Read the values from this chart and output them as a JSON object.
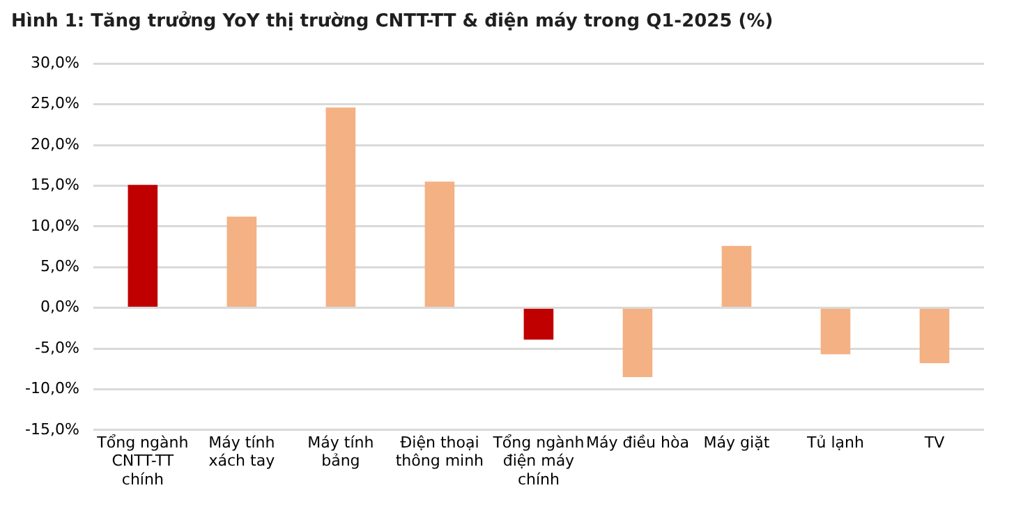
{
  "chart_data": {
    "type": "bar",
    "title": "Hình 1: Tăng trưởng YoY thị trường CNTT-TT & điện máy trong Q1-2025 (%)",
    "categories": [
      "Tổng ngành CNTT-TT chính",
      "Máy tính xách tay",
      "Máy tính bảng",
      "Điện thoại thông minh",
      "Tổng ngành điện máy chính",
      "Máy điều hòa",
      "Máy giặt",
      "Tủ lạnh",
      "TV"
    ],
    "values": [
      15.1,
      11.2,
      24.6,
      15.5,
      -3.9,
      -8.5,
      7.6,
      -5.7,
      -6.8
    ],
    "colors": [
      "#c00000",
      "#f4b183",
      "#f4b183",
      "#f4b183",
      "#c00000",
      "#f4b183",
      "#f4b183",
      "#f4b183",
      "#f4b183"
    ],
    "ylim": [
      -15,
      30
    ],
    "yticks": [
      {
        "value": -15,
        "label": "-15,0%"
      },
      {
        "value": -10,
        "label": "-10,0%"
      },
      {
        "value": -5,
        "label": "-5,0%"
      },
      {
        "value": 0,
        "label": "0,0%"
      },
      {
        "value": 5,
        "label": "5,0%"
      },
      {
        "value": 10,
        "label": "10,0%"
      },
      {
        "value": 15,
        "label": "15,0%"
      },
      {
        "value": 20,
        "label": "20,0%"
      },
      {
        "value": 25,
        "label": "25,0%"
      },
      {
        "value": 30,
        "label": "30,0%"
      }
    ],
    "grid": "y",
    "legend": false
  }
}
